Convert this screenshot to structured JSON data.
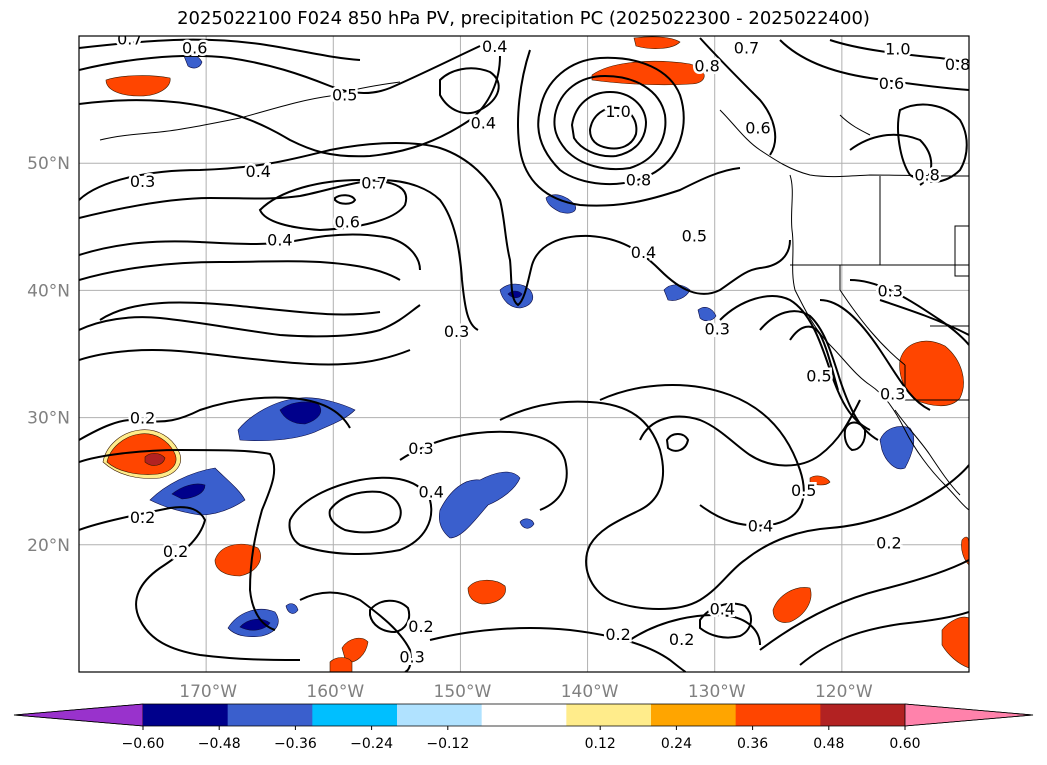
{
  "chart_data": {
    "type": "map-contour",
    "title": "2025022100 F024 850 hPa PV, precipitation PC (2025022300 - 2025022400)",
    "lon_range": [
      -180,
      -110
    ],
    "lat_range": [
      10,
      60
    ],
    "lon_ticks": [
      {
        "value": -170,
        "label": "170°W"
      },
      {
        "value": -160,
        "label": "160°W"
      },
      {
        "value": -150,
        "label": "150°W"
      },
      {
        "value": -140,
        "label": "140°W"
      },
      {
        "value": -130,
        "label": "130°W"
      },
      {
        "value": -120,
        "label": "120°W"
      }
    ],
    "lat_ticks": [
      {
        "value": 20,
        "label": "20°N"
      },
      {
        "value": 30,
        "label": "30°N"
      },
      {
        "value": 40,
        "label": "40°N"
      },
      {
        "value": 50,
        "label": "50°N"
      }
    ],
    "grid": true,
    "colorbar": {
      "orientation": "horizontal",
      "extend": "both",
      "colors": [
        "#9932CC",
        "#00008B",
        "#3A5FCD",
        "#00BFFF",
        "#B0E2FF",
        "#FFFFFF",
        "#FFEC8B",
        "#FFA500",
        "#FF4500",
        "#B22222",
        "#FF82AB"
      ],
      "ticks": [
        {
          "value": -0.6,
          "label": "−0.60"
        },
        {
          "value": -0.48,
          "label": "−0.48"
        },
        {
          "value": -0.36,
          "label": "−0.36"
        },
        {
          "value": -0.24,
          "label": "−0.24"
        },
        {
          "value": -0.12,
          "label": "−0.12"
        },
        {
          "value": 0.12,
          "label": "0.12"
        },
        {
          "value": 0.24,
          "label": "0.24"
        },
        {
          "value": 0.36,
          "label": "0.36"
        },
        {
          "value": 0.48,
          "label": "0.48"
        },
        {
          "value": 0.6,
          "label": "0.60"
        }
      ]
    },
    "contour_labels": [
      {
        "text": "0.7",
        "lon": -176,
        "lat": 59.8
      },
      {
        "text": "0.6",
        "lon": -170.9,
        "lat": 59.1
      },
      {
        "text": "0.4",
        "lon": -147.3,
        "lat": 59.2
      },
      {
        "text": "0.7",
        "lon": -127.5,
        "lat": 59.1
      },
      {
        "text": "1.0",
        "lon": -115.6,
        "lat": 59.0
      },
      {
        "text": "0.8",
        "lon": -110.9,
        "lat": 57.8
      },
      {
        "text": "0.8",
        "lon": -130.6,
        "lat": 57.7
      },
      {
        "text": "0.5",
        "lon": -159.1,
        "lat": 55.4
      },
      {
        "text": "1.0",
        "lon": -137.6,
        "lat": 54.1
      },
      {
        "text": "0.6",
        "lon": -116.1,
        "lat": 56.3
      },
      {
        "text": "0.4",
        "lon": -148.2,
        "lat": 53.2
      },
      {
        "text": "0.6",
        "lon": -126.6,
        "lat": 52.8
      },
      {
        "text": "0.8",
        "lon": -113.3,
        "lat": 49.1
      },
      {
        "text": "0.3",
        "lon": -175.0,
        "lat": 48.6
      },
      {
        "text": "0.4",
        "lon": -165.9,
        "lat": 49.4
      },
      {
        "text": "0.7",
        "lon": -156.8,
        "lat": 48.5
      },
      {
        "text": "0.8",
        "lon": -136.0,
        "lat": 48.7
      },
      {
        "text": "0.6",
        "lon": -158.9,
        "lat": 45.4
      },
      {
        "text": "0.4",
        "lon": -164.2,
        "lat": 44.0
      },
      {
        "text": "0.5",
        "lon": -131.6,
        "lat": 44.3
      },
      {
        "text": "0.4",
        "lon": -135.6,
        "lat": 43.0
      },
      {
        "text": "0.3",
        "lon": -116.2,
        "lat": 40.0
      },
      {
        "text": "0.3",
        "lon": -150.3,
        "lat": 36.8
      },
      {
        "text": "0.3",
        "lon": -129.8,
        "lat": 37.0
      },
      {
        "text": "0.5",
        "lon": -121.8,
        "lat": 33.3
      },
      {
        "text": "0.2",
        "lon": -175.0,
        "lat": 30.0
      },
      {
        "text": "0.3",
        "lon": -116.0,
        "lat": 31.9
      },
      {
        "text": "0.3",
        "lon": -153.1,
        "lat": 27.6
      },
      {
        "text": "0.4",
        "lon": -152.3,
        "lat": 24.2
      },
      {
        "text": "0.5",
        "lon": -123.0,
        "lat": 24.3
      },
      {
        "text": "0.2",
        "lon": -175.0,
        "lat": 22.2
      },
      {
        "text": "0.4",
        "lon": -126.4,
        "lat": 21.5
      },
      {
        "text": "0.2",
        "lon": -116.3,
        "lat": 20.2
      },
      {
        "text": "0.2",
        "lon": -172.4,
        "lat": 19.5
      },
      {
        "text": "0.4",
        "lon": -129.4,
        "lat": 15.0
      },
      {
        "text": "0.2",
        "lon": -137.6,
        "lat": 13.0
      },
      {
        "text": "0.2",
        "lon": -132.6,
        "lat": 12.6
      },
      {
        "text": "0.2",
        "lon": -153.1,
        "lat": 13.6
      },
      {
        "text": "0.3",
        "lon": -153.8,
        "lat": 11.2
      }
    ]
  }
}
